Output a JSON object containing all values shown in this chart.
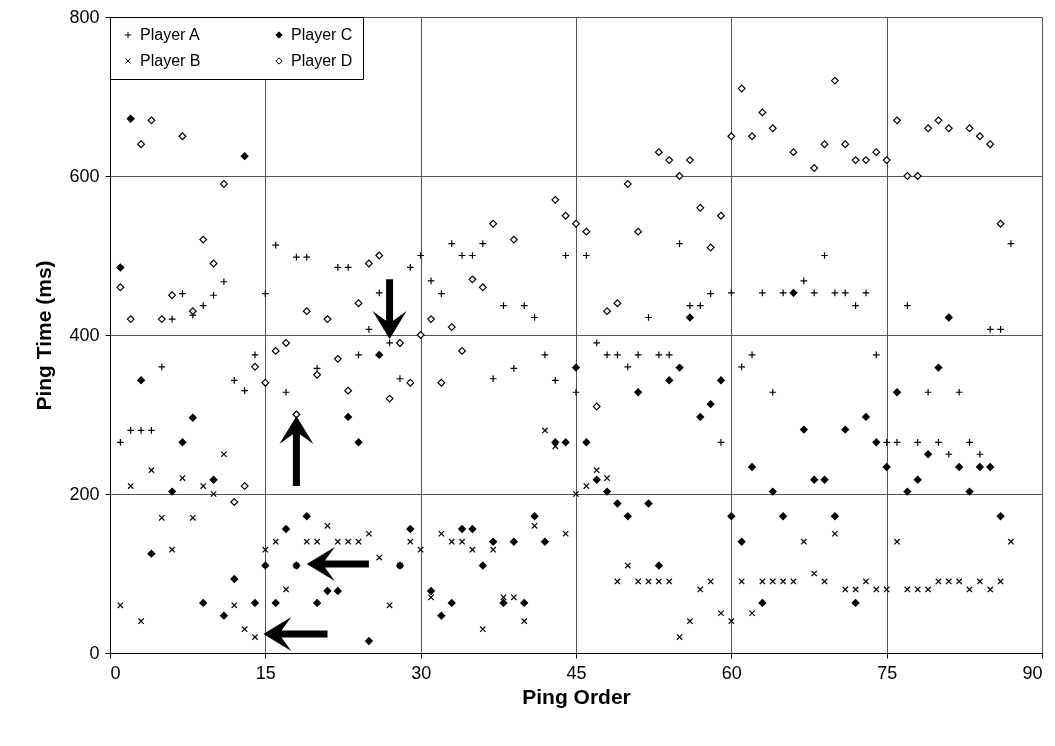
{
  "chart_data": {
    "type": "scatter",
    "xlabel": "Ping Order",
    "ylabel": "Ping Time (ms)",
    "xlim": [
      0,
      90
    ],
    "xticks": [
      0,
      15,
      30,
      45,
      60,
      75,
      90
    ],
    "ylim": [
      0,
      800
    ],
    "yticks": [
      0,
      200,
      400,
      600,
      800
    ],
    "grid": true,
    "legend": "top left",
    "x": [
      1,
      2,
      3,
      4,
      5,
      6,
      7,
      8,
      9,
      10,
      11,
      12,
      13,
      14,
      15,
      16,
      17,
      18,
      19,
      20,
      21,
      22,
      23,
      24,
      25,
      26,
      27,
      28,
      29,
      30,
      31,
      32,
      33,
      34,
      35,
      36,
      37,
      38,
      39,
      40,
      41,
      42,
      43,
      44,
      45,
      46,
      47,
      48,
      49,
      50,
      51,
      52,
      53,
      54,
      55,
      56,
      57,
      58,
      59,
      60,
      61,
      62,
      63,
      64,
      65,
      66,
      67,
      68,
      69,
      70,
      71,
      72,
      73,
      74,
      75,
      76,
      77,
      78,
      79,
      80,
      81,
      82,
      83,
      84,
      85,
      86,
      87
    ],
    "series": [
      {
        "name": "Player A",
        "color": "#000000",
        "marker": "cross",
        "values": [
          265,
          280,
          280,
          280,
          360,
          420,
          452,
          425,
          437,
          450,
          467,
          343,
          330,
          375,
          452,
          513,
          328,
          498,
          498,
          358,
          420,
          485,
          485,
          375,
          407,
          453,
          390,
          345,
          485,
          500,
          468,
          452,
          515,
          500,
          500,
          515,
          345,
          437,
          358,
          437,
          422,
          375,
          343,
          500,
          328,
          500,
          390,
          375,
          375,
          360,
          375,
          422,
          375,
          375,
          515,
          437,
          437,
          452,
          265,
          453,
          360,
          375,
          453,
          328,
          453,
          453,
          468,
          453,
          500,
          453,
          453,
          437,
          453,
          375,
          265,
          265,
          437,
          265,
          328,
          265,
          250,
          328,
          265,
          250,
          407,
          407,
          515
        ]
      },
      {
        "name": "Player B",
        "color": "#000000",
        "marker": "x",
        "values": [
          60,
          210,
          40,
          230,
          170,
          130,
          220,
          170,
          210,
          200,
          250,
          60,
          30,
          20,
          130,
          140,
          80,
          110,
          140,
          140,
          160,
          140,
          140,
          140,
          150,
          120,
          60,
          110,
          140,
          130,
          70,
          150,
          140,
          140,
          130,
          30,
          130,
          70,
          70,
          40,
          160,
          280,
          260,
          150,
          200,
          210,
          230,
          220,
          90,
          110,
          90,
          90,
          90,
          90,
          20,
          40,
          80,
          90,
          50,
          40,
          90,
          50,
          90,
          90,
          90,
          90,
          140,
          100,
          90,
          150,
          80,
          80,
          90,
          80,
          80,
          140,
          80,
          80,
          80,
          90,
          90,
          90,
          80,
          90,
          80,
          90,
          140
        ]
      },
      {
        "name": "Player C",
        "color": "#000000",
        "marker": "diamond",
        "values": [
          485,
          672,
          343,
          125,
          null,
          203,
          265,
          296,
          63,
          218,
          47,
          93,
          625,
          63,
          110,
          63,
          156,
          110,
          172,
          63,
          78,
          78,
          297,
          265,
          15,
          375,
          null,
          110,
          156,
          null,
          78,
          47,
          63,
          156,
          156,
          110,
          140,
          63,
          140,
          63,
          172,
          140,
          265,
          265,
          359,
          265,
          218,
          203,
          188,
          172,
          328,
          188,
          110,
          343,
          359,
          422,
          297,
          313,
          343,
          172,
          140,
          234,
          63,
          203,
          172,
          453,
          281,
          218,
          218,
          172,
          281,
          63,
          297,
          265,
          234,
          328,
          203,
          218,
          250,
          359,
          422,
          234,
          203,
          234,
          234,
          172,
          null
        ]
      },
      {
        "name": "Player D",
        "color": "#000000",
        "marker": "diamond-open",
        "values": [
          460,
          420,
          640,
          670,
          420,
          450,
          650,
          430,
          520,
          490,
          590,
          190,
          210,
          360,
          340,
          380,
          390,
          300,
          430,
          350,
          420,
          370,
          330,
          440,
          490,
          500,
          320,
          390,
          340,
          400,
          420,
          340,
          410,
          380,
          470,
          460,
          540,
          null,
          520,
          null,
          null,
          null,
          570,
          550,
          540,
          530,
          310,
          430,
          440,
          590,
          530,
          null,
          630,
          620,
          600,
          620,
          560,
          510,
          550,
          650,
          710,
          650,
          680,
          660,
          null,
          630,
          null,
          610,
          640,
          720,
          640,
          620,
          620,
          630,
          620,
          670,
          600,
          600,
          660,
          670,
          660,
          null,
          660,
          650,
          640,
          540,
          null
        ]
      }
    ]
  }
}
